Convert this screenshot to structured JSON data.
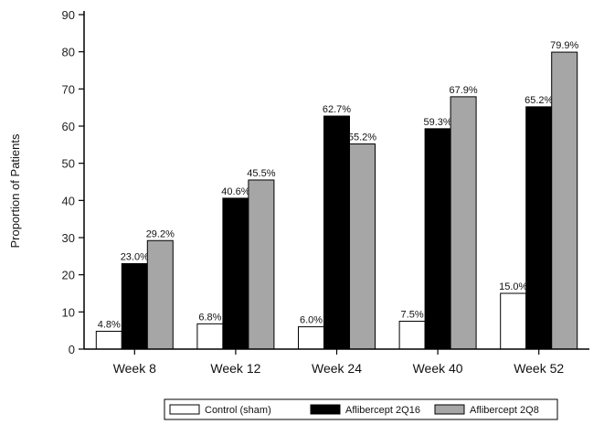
{
  "chart_data": {
    "type": "bar",
    "title": "",
    "xlabel": "",
    "ylabel": "Proportion of Patients",
    "ylim": [
      0,
      90
    ],
    "yticks": [
      0,
      10,
      20,
      30,
      40,
      50,
      60,
      70,
      80,
      90
    ],
    "categories": [
      "Week 8",
      "Week 12",
      "Week 24",
      "Week 40",
      "Week 52"
    ],
    "series": [
      {
        "name": "Control (sham)",
        "color": "#ffffff",
        "values": [
          4.8,
          6.8,
          6.0,
          7.5,
          15.0
        ],
        "labels": [
          "4.8%",
          "6.8%",
          "6.0%",
          "7.5%",
          "15.0%"
        ]
      },
      {
        "name": "Aflibercept 2Q16",
        "color": "#000000",
        "values": [
          23.0,
          40.6,
          62.7,
          59.3,
          65.2
        ],
        "labels": [
          "23.0%",
          "40.6%",
          "62.7%",
          "59.3%",
          "65.2%"
        ]
      },
      {
        "name": "Aflibercept 2Q8",
        "color": "#a6a6a6",
        "values": [
          29.2,
          45.5,
          55.2,
          67.9,
          79.9
        ],
        "labels": [
          "29.2%",
          "45.5%",
          "55.2%",
          "67.9%",
          "79.9%"
        ]
      }
    ],
    "legend_position": "bottom",
    "grid": false
  }
}
